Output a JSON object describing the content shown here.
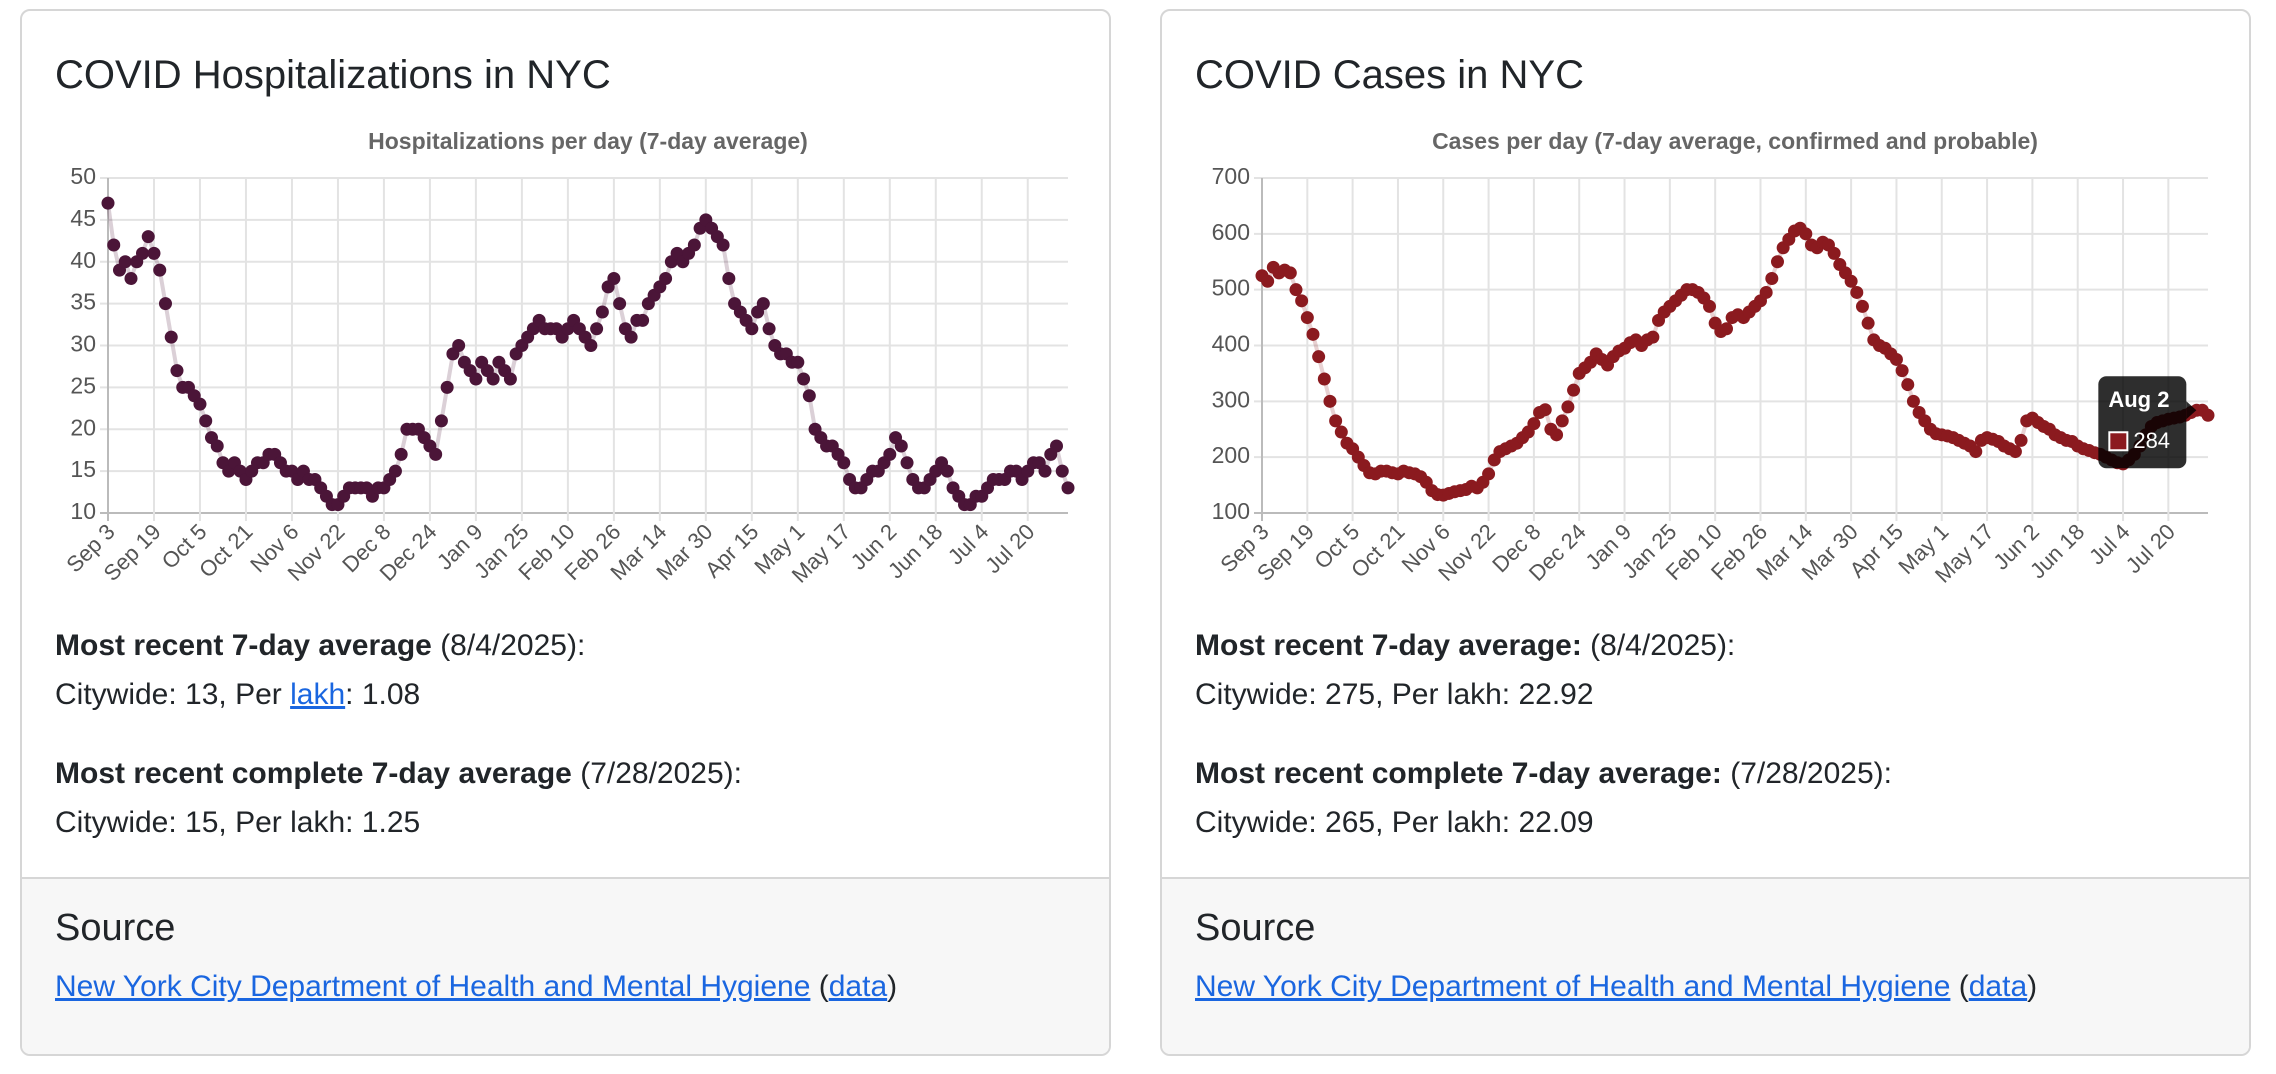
{
  "cards": [
    {
      "title": "COVID Hospitalizations in NYC",
      "stats": [
        {
          "heading": "Most recent 7-day average",
          "date": "(8/4/2025):",
          "line": [
            "Citywide: 13, Per",
            "lakh",
            ": 1.08"
          ]
        },
        {
          "heading": "Most recent complete 7-day average",
          "date": "(7/28/2025):",
          "line": [
            "Citywide: 15, Per lakh: 1.25"
          ]
        }
      ],
      "source": {
        "heading": "Source",
        "link": "New York City Department of Health and Mental Hygiene",
        "open": "(",
        "data_link": "data",
        "close": ")"
      }
    },
    {
      "title": "COVID Cases in NYC",
      "stats": [
        {
          "heading": "Most recent 7-day average:",
          "date": "(8/4/2025):",
          "line": [
            "Citywide: 275, Per lakh: 22.92"
          ]
        },
        {
          "heading": "Most recent complete 7-day average:",
          "date": "(7/28/2025):",
          "line": [
            "Citywide: 265, Per lakh: 22.09"
          ]
        }
      ],
      "source": {
        "heading": "Source",
        "link": "New York City Department of Health and Mental Hygiene",
        "open": "(",
        "data_link": "data",
        "close": ")"
      }
    }
  ],
  "chart_data": [
    {
      "type": "scatter-line",
      "title": "Hospitalizations per day (7-day average)",
      "color": "#4b1538",
      "grid": true,
      "ylim": [
        10,
        50
      ],
      "yticks": [
        10,
        15,
        20,
        25,
        30,
        35,
        40,
        45,
        50
      ],
      "categories": [
        "Sep 3",
        null,
        null,
        null,
        null,
        null,
        null,
        null,
        "Sep 19",
        null,
        null,
        null,
        null,
        null,
        null,
        null,
        "Oct 5",
        null,
        null,
        null,
        null,
        null,
        null,
        null,
        "Oct 21",
        null,
        null,
        null,
        null,
        null,
        null,
        null,
        "Nov 6",
        null,
        null,
        null,
        null,
        null,
        null,
        null,
        "Nov 22",
        null,
        null,
        null,
        null,
        null,
        null,
        null,
        "Dec 8",
        null,
        null,
        null,
        null,
        null,
        null,
        null,
        "Dec 24",
        null,
        null,
        null,
        null,
        null,
        null,
        null,
        "Jan 9",
        null,
        null,
        null,
        null,
        null,
        null,
        null,
        "Jan 25",
        null,
        null,
        null,
        null,
        null,
        null,
        null,
        "Feb 10",
        null,
        null,
        null,
        null,
        null,
        null,
        null,
        "Feb 26",
        null,
        null,
        null,
        null,
        null,
        null,
        null,
        "Mar 14",
        null,
        null,
        null,
        null,
        null,
        null,
        null,
        "Mar 30",
        null,
        null,
        null,
        null,
        null,
        null,
        null,
        "Apr 15",
        null,
        null,
        null,
        null,
        null,
        null,
        null,
        "May 1",
        null,
        null,
        null,
        null,
        null,
        null,
        null,
        "May 17",
        null,
        null,
        null,
        null,
        null,
        null,
        null,
        "Jun 2",
        null,
        null,
        null,
        null,
        null,
        null,
        null,
        "Jun 18",
        null,
        null,
        null,
        null,
        null,
        null,
        null,
        "Jul 4",
        null,
        null,
        null,
        null,
        null,
        null,
        null,
        "Jul 20",
        null,
        null,
        null,
        null,
        null,
        null,
        null
      ],
      "values": [
        47,
        42,
        39,
        40,
        38,
        40,
        41,
        43,
        41,
        39,
        35,
        31,
        27,
        25,
        25,
        24,
        23,
        21,
        19,
        18,
        16,
        15,
        16,
        15,
        14,
        15,
        16,
        16,
        17,
        17,
        16,
        15,
        15,
        14,
        15,
        14,
        14,
        13,
        12,
        11,
        11,
        12,
        13,
        13,
        13,
        13,
        12,
        13,
        13,
        14,
        15,
        17,
        20,
        20,
        20,
        19,
        18,
        17,
        21,
        25,
        29,
        30,
        28,
        27,
        26,
        28,
        27,
        26,
        28,
        27,
        26,
        29,
        30,
        31,
        32,
        33,
        32,
        32,
        32,
        31,
        32,
        33,
        32,
        31,
        30,
        32,
        34,
        37,
        38,
        35,
        32,
        31,
        33,
        33,
        35,
        36,
        37,
        38,
        40,
        41,
        40,
        41,
        42,
        44,
        45,
        44,
        43,
        42,
        38,
        35,
        34,
        33,
        32,
        34,
        35,
        32,
        30,
        29,
        29,
        28,
        28,
        26,
        24,
        20,
        19,
        18,
        18,
        17,
        16,
        14,
        13,
        13,
        14,
        15,
        15,
        16,
        17,
        19,
        18,
        16,
        14,
        13,
        13,
        14,
        15,
        16,
        15,
        13,
        12,
        11,
        11,
        12,
        12,
        13,
        14,
        14,
        14,
        15,
        15,
        14,
        15,
        16,
        16,
        15,
        17,
        18,
        15,
        13
      ]
    },
    {
      "type": "scatter-line",
      "title": "Cases per day (7-day average, confirmed and probable)",
      "color": "#8b1a1f",
      "grid": true,
      "ylim": [
        100,
        700
      ],
      "yticks": [
        100,
        200,
        300,
        400,
        500,
        600,
        700
      ],
      "categories": [
        "Sep 3",
        null,
        null,
        null,
        null,
        null,
        null,
        null,
        "Sep 19",
        null,
        null,
        null,
        null,
        null,
        null,
        null,
        "Oct 5",
        null,
        null,
        null,
        null,
        null,
        null,
        null,
        "Oct 21",
        null,
        null,
        null,
        null,
        null,
        null,
        null,
        "Nov 6",
        null,
        null,
        null,
        null,
        null,
        null,
        null,
        "Nov 22",
        null,
        null,
        null,
        null,
        null,
        null,
        null,
        "Dec 8",
        null,
        null,
        null,
        null,
        null,
        null,
        null,
        "Dec 24",
        null,
        null,
        null,
        null,
        null,
        null,
        null,
        "Jan 9",
        null,
        null,
        null,
        null,
        null,
        null,
        null,
        "Jan 25",
        null,
        null,
        null,
        null,
        null,
        null,
        null,
        "Feb 10",
        null,
        null,
        null,
        null,
        null,
        null,
        null,
        "Feb 26",
        null,
        null,
        null,
        null,
        null,
        null,
        null,
        "Mar 14",
        null,
        null,
        null,
        null,
        null,
        null,
        null,
        "Mar 30",
        null,
        null,
        null,
        null,
        null,
        null,
        null,
        "Apr 15",
        null,
        null,
        null,
        null,
        null,
        null,
        null,
        "May 1",
        null,
        null,
        null,
        null,
        null,
        null,
        null,
        "May 17",
        null,
        null,
        null,
        null,
        null,
        null,
        null,
        "Jun 2",
        null,
        null,
        null,
        null,
        null,
        null,
        null,
        "Jun 18",
        null,
        null,
        null,
        null,
        null,
        null,
        null,
        "Jul 4",
        null,
        null,
        null,
        null,
        null,
        null,
        null,
        "Jul 20",
        null,
        null,
        null,
        null,
        null,
        null,
        null
      ],
      "values": [
        525,
        515,
        540,
        530,
        535,
        530,
        500,
        480,
        450,
        420,
        380,
        340,
        300,
        265,
        245,
        225,
        215,
        200,
        185,
        172,
        170,
        175,
        175,
        172,
        170,
        175,
        172,
        170,
        165,
        155,
        140,
        133,
        132,
        135,
        138,
        140,
        142,
        148,
        145,
        155,
        170,
        195,
        210,
        215,
        220,
        225,
        235,
        245,
        260,
        280,
        285,
        250,
        240,
        265,
        290,
        320,
        350,
        360,
        370,
        385,
        375,
        365,
        380,
        390,
        395,
        405,
        410,
        400,
        410,
        415,
        445,
        460,
        470,
        480,
        490,
        500,
        500,
        495,
        485,
        470,
        440,
        425,
        430,
        450,
        455,
        450,
        460,
        470,
        480,
        495,
        520,
        550,
        575,
        590,
        605,
        610,
        600,
        580,
        575,
        585,
        580,
        565,
        545,
        530,
        515,
        495,
        470,
        440,
        410,
        400,
        395,
        385,
        375,
        355,
        330,
        300,
        280,
        265,
        250,
        242,
        240,
        238,
        235,
        230,
        225,
        220,
        210,
        230,
        235,
        232,
        228,
        220,
        215,
        210,
        230,
        265,
        270,
        262,
        255,
        250,
        240,
        235,
        230,
        228,
        220,
        215,
        212,
        208,
        205,
        200,
        195,
        190,
        188,
        195,
        205,
        220,
        240,
        255,
        262,
        265,
        268,
        270,
        272,
        275,
        280,
        284,
        284,
        275
      ],
      "tooltip": {
        "title": "Aug 2",
        "index": 166,
        "value": 284
      }
    }
  ]
}
